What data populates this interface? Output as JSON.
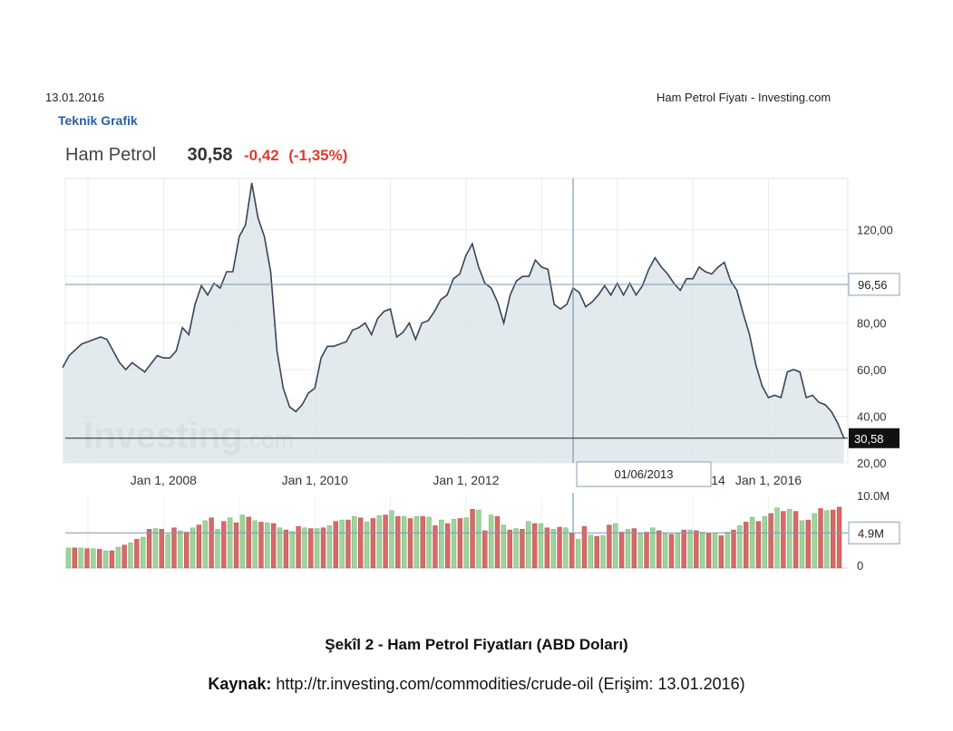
{
  "header": {
    "date": "13.01.2016",
    "page_title": "Ham Petrol Fiyatı - Investing.com",
    "technical_chart_link": "Teknik Grafik"
  },
  "quote": {
    "name": "Ham Petrol",
    "price": "30,58",
    "change": "-0,42",
    "change_pct": "(-1,35%)"
  },
  "chart_data": {
    "type": "area",
    "x_tick_labels": [
      "Jan 1, 2008",
      "Jan 1, 2010",
      "Jan 1, 2012",
      "14",
      "Jan 1, 2016"
    ],
    "y_tick_labels": [
      "120,00",
      "80,00",
      "60,00",
      "40,00",
      "20,00"
    ],
    "ylim": [
      20,
      142
    ],
    "watermark": "Investing.com",
    "crosshair": {
      "date_label": "01/06/2013",
      "price_label": "96,56",
      "price": 96.56,
      "date": "2013-06-01"
    },
    "last_price_label": "30,58",
    "last_price": 30.58,
    "grid": true,
    "series": [
      {
        "values": [
          [
            "2006-09",
            61
          ],
          [
            "2006-10",
            66
          ],
          [
            "2006-12",
            71
          ],
          [
            "2007-01",
            72
          ],
          [
            "2007-03",
            74
          ],
          [
            "2007-04",
            73
          ],
          [
            "2007-06",
            63
          ],
          [
            "2007-07",
            60
          ],
          [
            "2007-08",
            63
          ],
          [
            "2007-10",
            59
          ],
          [
            "2007-12",
            66
          ],
          [
            "2008-01",
            65
          ],
          [
            "2008-02",
            65
          ],
          [
            "2008-03",
            68
          ],
          [
            "2008-04",
            78
          ],
          [
            "2008-05",
            75
          ],
          [
            "2008-06",
            88
          ],
          [
            "2008-07",
            96
          ],
          [
            "2008-08",
            92
          ],
          [
            "2008-09",
            97
          ],
          [
            "2008-10",
            95
          ],
          [
            "2008-11",
            102
          ],
          [
            "2008-12",
            102
          ],
          [
            "2009-01",
            117
          ],
          [
            "2009-02",
            122
          ],
          [
            "2009-03",
            140
          ],
          [
            "2009-04",
            125
          ],
          [
            "2009-05",
            117
          ],
          [
            "2009-06",
            102
          ],
          [
            "2009-07",
            68
          ],
          [
            "2009-08",
            52
          ],
          [
            "2009-09",
            44
          ],
          [
            "2009-10",
            42
          ],
          [
            "2009-11",
            45
          ],
          [
            "2009-12",
            50
          ],
          [
            "2010-01",
            52
          ],
          [
            "2010-02",
            65
          ],
          [
            "2010-03",
            70
          ],
          [
            "2010-04",
            70
          ],
          [
            "2010-05",
            71
          ],
          [
            "2010-06",
            72
          ],
          [
            "2010-07",
            77
          ],
          [
            "2010-08",
            78
          ],
          [
            "2010-09",
            80
          ],
          [
            "2010-10",
            75
          ],
          [
            "2010-11",
            82
          ],
          [
            "2010-12",
            85
          ],
          [
            "2011-01",
            86
          ],
          [
            "2011-02",
            74
          ],
          [
            "2011-03",
            76
          ],
          [
            "2011-04",
            80
          ],
          [
            "2011-05",
            73
          ],
          [
            "2011-06",
            80
          ],
          [
            "2011-07",
            81
          ],
          [
            "2011-08",
            85
          ],
          [
            "2011-09",
            90
          ],
          [
            "2011-10",
            92
          ],
          [
            "2011-11",
            99
          ],
          [
            "2011-12",
            101
          ],
          [
            "2012-01",
            109
          ],
          [
            "2012-02",
            114
          ],
          [
            "2012-03",
            104
          ],
          [
            "2012-04",
            97
          ],
          [
            "2012-05",
            95
          ],
          [
            "2012-06",
            89
          ],
          [
            "2012-07",
            80
          ],
          [
            "2012-08",
            92
          ],
          [
            "2012-09",
            98
          ],
          [
            "2012-10",
            100
          ],
          [
            "2012-11",
            100
          ],
          [
            "2012-12",
            107
          ],
          [
            "2013-01",
            104
          ],
          [
            "2013-02",
            103
          ],
          [
            "2013-03",
            88
          ],
          [
            "2013-04",
            86
          ],
          [
            "2013-05",
            88
          ],
          [
            "2013-06",
            95
          ],
          [
            "2013-07",
            93
          ],
          [
            "2013-08",
            87
          ],
          [
            "2013-09",
            89
          ],
          [
            "2013-10",
            92
          ],
          [
            "2013-11",
            96
          ],
          [
            "2013-12",
            92
          ],
          [
            "2014-01",
            97
          ],
          [
            "2014-02",
            92
          ],
          [
            "2014-03",
            97
          ],
          [
            "2014-04",
            92
          ],
          [
            "2014-05",
            96
          ],
          [
            "2014-06",
            103
          ],
          [
            "2014-07",
            108
          ],
          [
            "2014-08",
            104
          ],
          [
            "2014-09",
            101
          ],
          [
            "2014-10",
            97
          ],
          [
            "2014-11",
            94
          ],
          [
            "2014-12",
            99
          ],
          [
            "2015-01",
            99
          ],
          [
            "2015-02",
            104
          ],
          [
            "2015-03",
            102
          ],
          [
            "2015-04",
            101
          ],
          [
            "2015-05",
            104
          ],
          [
            "2015-06",
            106
          ],
          [
            "2015-07",
            98
          ],
          [
            "2015-08",
            94
          ],
          [
            "2015-09",
            84
          ],
          [
            "2015-10",
            75
          ],
          [
            "2015-11",
            62
          ],
          [
            "2015-12",
            53
          ],
          [
            "2016-01",
            48
          ],
          [
            "2016-02",
            49
          ],
          [
            "2016-03",
            48
          ],
          [
            "2016-04",
            59
          ],
          [
            "2016-05",
            60
          ],
          [
            "2016-06",
            59
          ],
          [
            "2016-07",
            48
          ],
          [
            "2016-08",
            49
          ],
          [
            "2016-09",
            46
          ],
          [
            "2016-10",
            45
          ],
          [
            "2016-11",
            42
          ],
          [
            "2016-12",
            37
          ],
          [
            "2017-01",
            30.58
          ]
        ]
      }
    ],
    "volume": {
      "y_tick_labels": [
        "10.0M",
        "4.9M",
        "0"
      ],
      "marker_label": "4.9M",
      "marker_value": 4.9,
      "max": 10.0,
      "colors": {
        "up": "#9fd49c",
        "down": "#d66a67"
      },
      "values": [
        [
          2.8,
          "up"
        ],
        [
          2.8,
          "down"
        ],
        [
          2.8,
          "up"
        ],
        [
          2.7,
          "down"
        ],
        [
          2.7,
          "up"
        ],
        [
          2.6,
          "down"
        ],
        [
          2.4,
          "up"
        ],
        [
          2.4,
          "down"
        ],
        [
          2.9,
          "up"
        ],
        [
          3.2,
          "down"
        ],
        [
          3.5,
          "up"
        ],
        [
          4.0,
          "down"
        ],
        [
          4.3,
          "up"
        ],
        [
          5.4,
          "down"
        ],
        [
          5.5,
          "up"
        ],
        [
          5.4,
          "down"
        ],
        [
          4.7,
          "up"
        ],
        [
          5.6,
          "down"
        ],
        [
          5.2,
          "up"
        ],
        [
          5.0,
          "down"
        ],
        [
          5.6,
          "up"
        ],
        [
          6.0,
          "down"
        ],
        [
          6.6,
          "up"
        ],
        [
          7.0,
          "down"
        ],
        [
          5.4,
          "up"
        ],
        [
          6.5,
          "down"
        ],
        [
          7.0,
          "up"
        ],
        [
          6.3,
          "down"
        ],
        [
          7.4,
          "up"
        ],
        [
          7.1,
          "down"
        ],
        [
          6.6,
          "up"
        ],
        [
          6.4,
          "down"
        ],
        [
          6.3,
          "up"
        ],
        [
          6.2,
          "down"
        ],
        [
          5.6,
          "up"
        ],
        [
          5.3,
          "down"
        ],
        [
          5.1,
          "up"
        ],
        [
          5.8,
          "down"
        ],
        [
          5.6,
          "up"
        ],
        [
          5.5,
          "down"
        ],
        [
          5.5,
          "up"
        ],
        [
          5.6,
          "down"
        ],
        [
          5.9,
          "up"
        ],
        [
          6.5,
          "down"
        ],
        [
          6.7,
          "up"
        ],
        [
          6.7,
          "down"
        ],
        [
          7.2,
          "up"
        ],
        [
          7.0,
          "down"
        ],
        [
          6.4,
          "up"
        ],
        [
          6.9,
          "down"
        ],
        [
          7.3,
          "up"
        ],
        [
          7.4,
          "down"
        ],
        [
          8.0,
          "up"
        ],
        [
          7.2,
          "down"
        ],
        [
          7.2,
          "up"
        ],
        [
          6.9,
          "down"
        ],
        [
          7.2,
          "up"
        ],
        [
          7.2,
          "down"
        ],
        [
          7.1,
          "up"
        ],
        [
          5.9,
          "down"
        ],
        [
          6.7,
          "up"
        ],
        [
          6.2,
          "down"
        ],
        [
          6.8,
          "up"
        ],
        [
          6.9,
          "down"
        ],
        [
          7.0,
          "up"
        ],
        [
          8.2,
          "down"
        ],
        [
          8.1,
          "up"
        ],
        [
          5.2,
          "down"
        ],
        [
          7.4,
          "up"
        ],
        [
          7.2,
          "down"
        ],
        [
          6.0,
          "up"
        ],
        [
          5.3,
          "down"
        ],
        [
          5.5,
          "up"
        ],
        [
          5.4,
          "down"
        ],
        [
          6.5,
          "up"
        ],
        [
          6.2,
          "down"
        ],
        [
          6.2,
          "up"
        ],
        [
          5.6,
          "down"
        ],
        [
          5.4,
          "up"
        ],
        [
          5.7,
          "down"
        ],
        [
          5.6,
          "up"
        ],
        [
          4.9,
          "down"
        ],
        [
          4.0,
          "up"
        ],
        [
          5.8,
          "down"
        ],
        [
          4.6,
          "up"
        ],
        [
          4.4,
          "down"
        ],
        [
          4.5,
          "up"
        ],
        [
          6.0,
          "down"
        ],
        [
          6.2,
          "up"
        ],
        [
          5.0,
          "down"
        ],
        [
          5.4,
          "up"
        ],
        [
          5.5,
          "down"
        ],
        [
          4.8,
          "up"
        ],
        [
          5.0,
          "down"
        ],
        [
          5.6,
          "up"
        ],
        [
          5.2,
          "down"
        ],
        [
          4.9,
          "up"
        ],
        [
          4.7,
          "down"
        ],
        [
          4.8,
          "up"
        ],
        [
          5.3,
          "down"
        ],
        [
          5.3,
          "up"
        ],
        [
          5.2,
          "down"
        ],
        [
          5.0,
          "up"
        ],
        [
          4.8,
          "down"
        ],
        [
          4.9,
          "up"
        ],
        [
          4.5,
          "down"
        ],
        [
          5.0,
          "up"
        ],
        [
          5.3,
          "down"
        ],
        [
          5.9,
          "up"
        ],
        [
          6.4,
          "down"
        ],
        [
          7.1,
          "up"
        ],
        [
          6.5,
          "down"
        ],
        [
          7.2,
          "up"
        ],
        [
          7.6,
          "down"
        ],
        [
          8.4,
          "up"
        ],
        [
          7.9,
          "down"
        ],
        [
          8.2,
          "up"
        ],
        [
          7.9,
          "down"
        ],
        [
          6.6,
          "up"
        ],
        [
          6.7,
          "down"
        ],
        [
          7.6,
          "up"
        ],
        [
          8.3,
          "down"
        ],
        [
          8.0,
          "up"
        ],
        [
          8.1,
          "down"
        ],
        [
          8.5,
          "down"
        ]
      ]
    }
  },
  "caption": "Şekîl 2 - Ham Petrol Fiyatları (ABD Doları)",
  "source": {
    "label": "Kaynak:",
    "text": " http://tr.investing.com/commodities/crude-oil (Erişim: 13.01.2016)"
  }
}
